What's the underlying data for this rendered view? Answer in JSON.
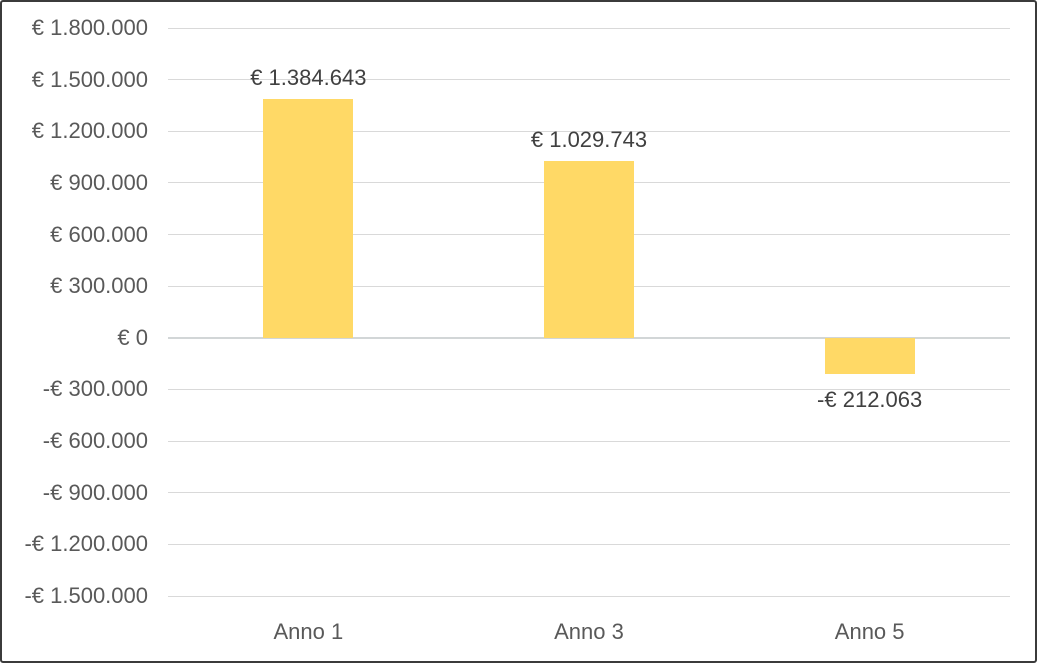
{
  "chart_data": {
    "type": "bar",
    "title": "",
    "xlabel": "",
    "ylabel": "",
    "categories": [
      "Anno 1",
      "Anno 3",
      "Anno 5"
    ],
    "values": [
      1384643,
      1029743,
      -212063
    ],
    "data_labels": [
      "€ 1.384.643",
      "€ 1.029.743",
      "-€ 212.063"
    ],
    "y_ticks": [
      {
        "value": 1800000,
        "label": "€ 1.800.000"
      },
      {
        "value": 1500000,
        "label": "€ 1.500.000"
      },
      {
        "value": 1200000,
        "label": "€ 1.200.000"
      },
      {
        "value": 900000,
        "label": "€ 900.000"
      },
      {
        "value": 600000,
        "label": "€ 600.000"
      },
      {
        "value": 300000,
        "label": "€ 300.000"
      },
      {
        "value": 0,
        "label": "€ 0"
      },
      {
        "value": -300000,
        "label": "-€ 300.000"
      },
      {
        "value": -600000,
        "label": "-€ 600.000"
      },
      {
        "value": -900000,
        "label": "-€ 900.000"
      },
      {
        "value": -1200000,
        "label": "-€ 1.200.000"
      },
      {
        "value": -1500000,
        "label": "-€ 1.500.000"
      }
    ],
    "ylim": [
      -1500000,
      1800000
    ],
    "grid": true,
    "legend": false,
    "colors": {
      "bar": "#FFD966",
      "gridline": "#D9D9D9",
      "zero_line": "#D2D6D7",
      "axis_label": "#595959",
      "data_label": "#404040",
      "background": "#FFFFFF",
      "frame_border": "#3B3B3B"
    }
  }
}
